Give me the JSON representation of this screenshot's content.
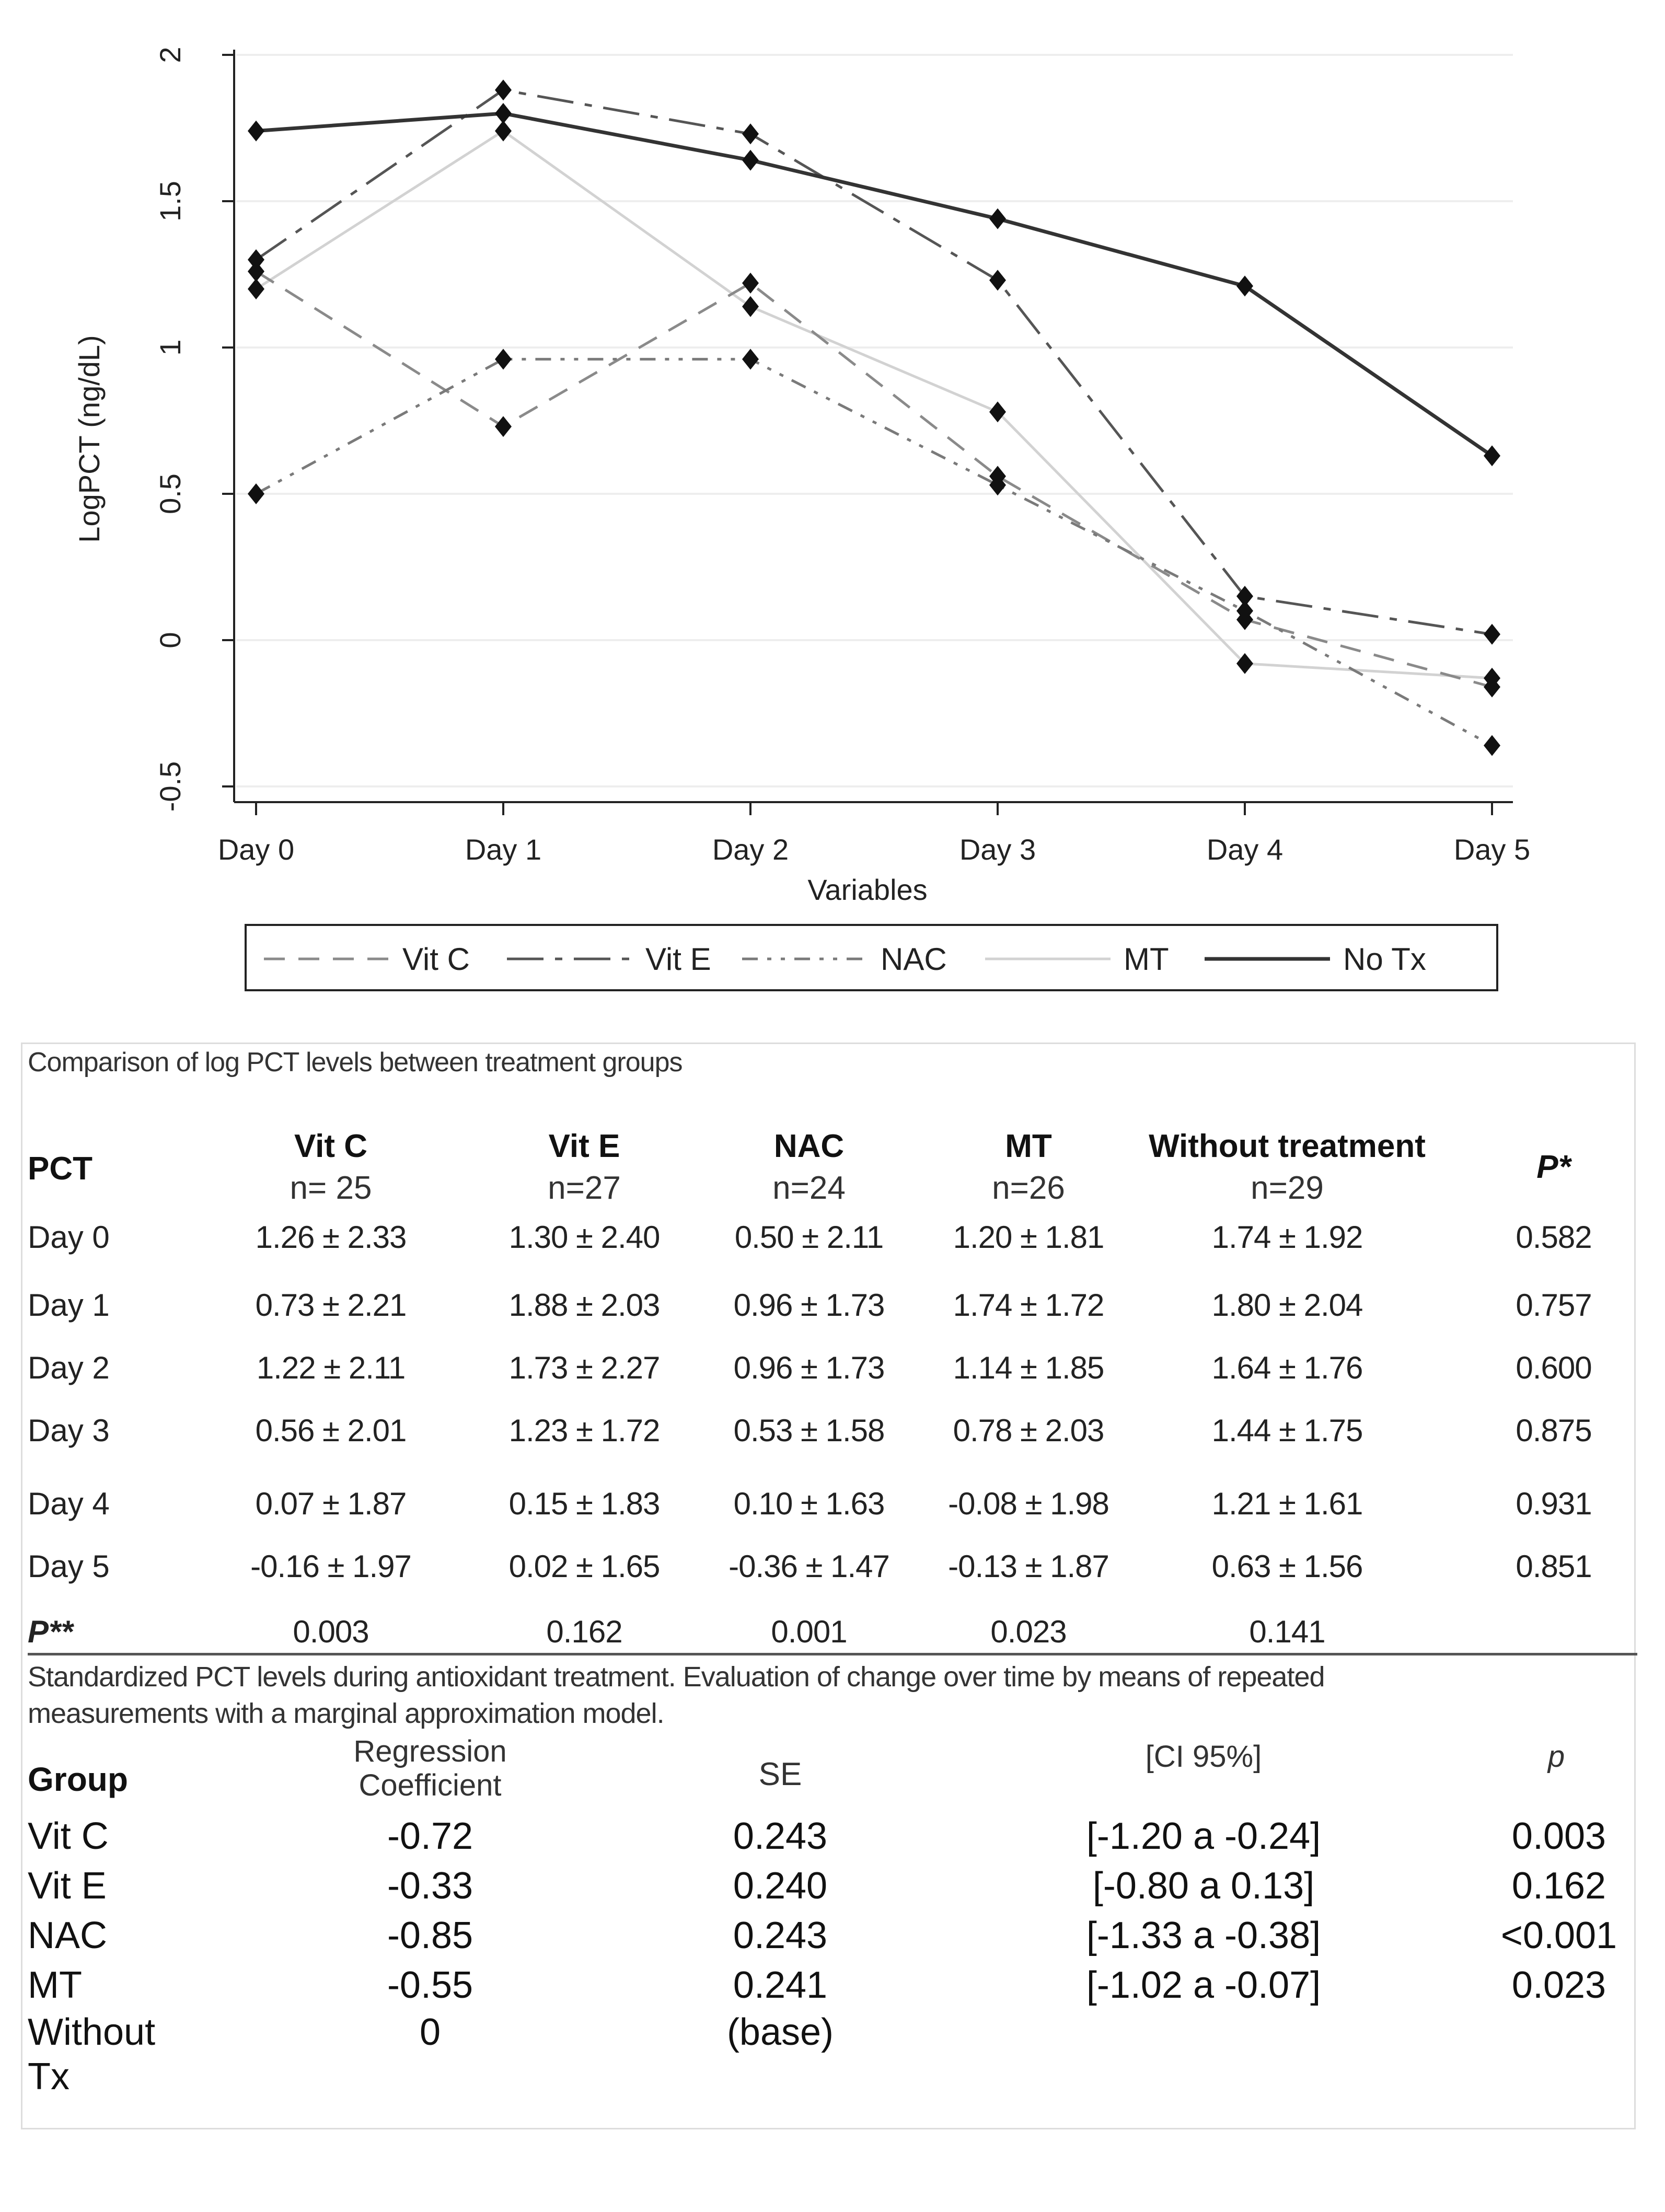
{
  "chart_data": {
    "type": "line",
    "categories": [
      "Day 0",
      "Day 1",
      "Day 2",
      "Day 3",
      "Day 4",
      "Day 5"
    ],
    "series": [
      {
        "name": "Vit C",
        "values": [
          1.26,
          0.73,
          1.22,
          0.56,
          0.07,
          -0.16
        ],
        "dash": "40 26",
        "color": "#8a8a8a"
      },
      {
        "name": "Vit E",
        "values": [
          1.3,
          1.88,
          1.73,
          1.23,
          0.15,
          0.02
        ],
        "dash": "70 22 14 22",
        "color": "#555555"
      },
      {
        "name": "NAC",
        "values": [
          0.5,
          0.96,
          0.96,
          0.53,
          0.1,
          -0.36
        ],
        "dash": "30 18 8 18 8 18",
        "color": "#7a7a7a"
      },
      {
        "name": "MT",
        "values": [
          1.2,
          1.74,
          1.14,
          0.78,
          -0.08,
          -0.13
        ],
        "dash": "",
        "color": "#d2d2d2"
      },
      {
        "name": "No Tx",
        "values": [
          1.74,
          1.8,
          1.64,
          1.44,
          1.21,
          0.63
        ],
        "dash": "",
        "color": "#333333"
      }
    ],
    "title": "",
    "xlabel": "Variables",
    "ylabel": "LogPCT (ng/dL)",
    "ylim": [
      -0.5,
      2
    ],
    "yticks": [
      "-0.5",
      "0",
      "0.5",
      "1",
      "1.5",
      "2"
    ],
    "ytick_values": [
      -0.5,
      0,
      0.5,
      1,
      1.5,
      2
    ],
    "grid": true,
    "legend_position": "bottom"
  },
  "table1": {
    "caption": "Comparison of log PCT levels between treatment groups",
    "row_header": "PCT",
    "columns": [
      {
        "label": "Vit C",
        "n": "n= 25"
      },
      {
        "label": "Vit E",
        "n": "n=27"
      },
      {
        "label": "NAC",
        "n": "n=24"
      },
      {
        "label": "MT",
        "n": "n=26"
      },
      {
        "label": "Without treatment",
        "n": "n=29"
      }
    ],
    "p_header": "P*",
    "rows": [
      {
        "day": "Day 0",
        "cells": [
          "1.26 ± 2.33",
          "1.30 ± 2.40",
          "0.50 ± 2.11",
          "1.20 ± 1.81",
          "1.74 ± 1.92"
        ],
        "p": "0.582"
      },
      {
        "day": "Day 1",
        "cells": [
          "0.73 ± 2.21",
          "1.88 ± 2.03",
          "0.96 ± 1.73",
          "1.74 ± 1.72",
          "1.80 ± 2.04"
        ],
        "p": "0.757"
      },
      {
        "day": "Day 2",
        "cells": [
          "1.22 ± 2.11",
          "1.73 ± 2.27",
          "0.96 ± 1.73",
          "1.14 ± 1.85",
          "1.64 ± 1.76"
        ],
        "p": "0.600"
      },
      {
        "day": "Day 3",
        "cells": [
          "0.56 ± 2.01",
          "1.23 ± 1.72",
          "0.53 ± 1.58",
          "0.78 ± 2.03",
          "1.44 ± 1.75"
        ],
        "p": "0.875"
      },
      {
        "day": "Day 4",
        "cells": [
          "0.07 ± 1.87",
          "0.15 ± 1.83",
          "0.10 ± 1.63",
          "-0.08 ± 1.98",
          "1.21 ± 1.61"
        ],
        "p": "0.931"
      },
      {
        "day": "Day 5",
        "cells": [
          "-0.16 ± 1.97",
          "0.02 ± 1.65",
          "-0.36 ± 1.47",
          "-0.13 ± 1.87",
          "0.63 ± 1.56"
        ],
        "p": "0.851"
      }
    ],
    "p2_label": "P**",
    "p2_values": [
      "0.003",
      "0.162",
      "0.001",
      "0.023",
      "0.141"
    ]
  },
  "table2": {
    "caption_line1": "Standardized PCT levels during antioxidant treatment. Evaluation of change over time by means of repeated",
    "caption_line2": "measurements with a marginal approximation model.",
    "headers": {
      "group": "Group",
      "coef_line1": "Regression",
      "coef_line2": "Coefficient",
      "se": "SE",
      "ci": "[CI 95%]",
      "p": "p"
    },
    "rows": [
      {
        "group": "Vit C",
        "coef": "-0.72",
        "se": "0.243",
        "ci": "[-1.20 a -0.24]",
        "p": "0.003"
      },
      {
        "group": "Vit E",
        "coef": "-0.33",
        "se": "0.240",
        "ci": "[-0.80 a 0.13]",
        "p": "0.162"
      },
      {
        "group": "NAC",
        "coef": "-0.85",
        "se": "0.243",
        "ci": "[-1.33 a -0.38]",
        "p": "<0.001"
      },
      {
        "group": "MT",
        "coef": "-0.55",
        "se": "0.241",
        "ci": "[-1.02 a -0.07]",
        "p": "0.023"
      },
      {
        "group": "Without",
        "coef": "0",
        "se": "(base)",
        "ci": "",
        "p": ""
      }
    ],
    "last_group_line2": "Tx"
  }
}
